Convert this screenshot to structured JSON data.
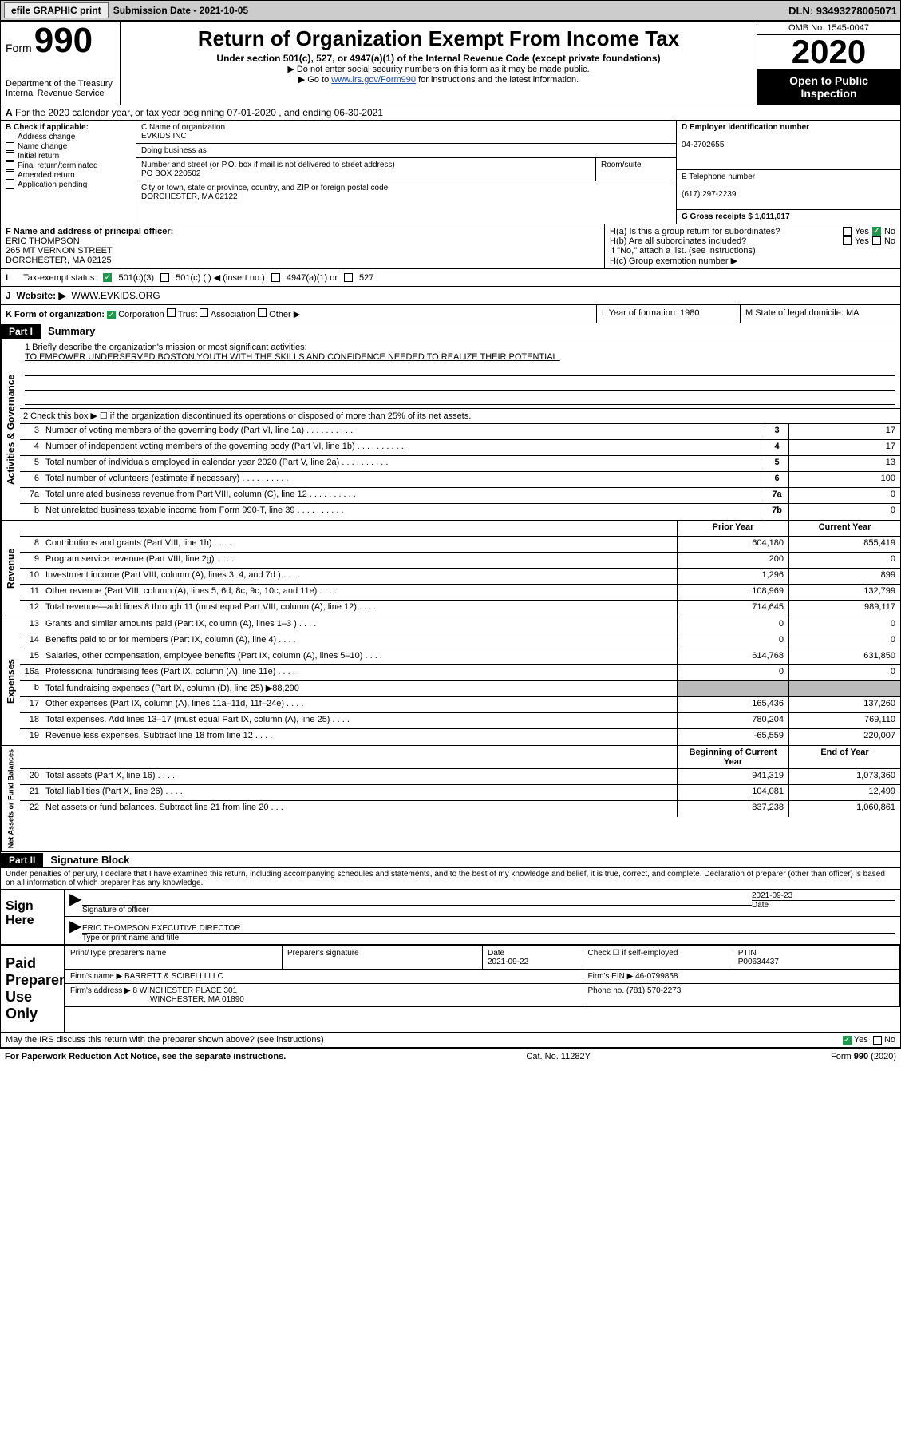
{
  "topbar": {
    "efile_label": "efile GRAPHIC print",
    "sub_date_label": "Submission Date - 2021-10-05",
    "dln_label": "DLN: 93493278005071"
  },
  "header": {
    "form_prefix": "Form",
    "form_number": "990",
    "dept": "Department of the Treasury\nInternal Revenue Service",
    "title": "Return of Organization Exempt From Income Tax",
    "subtitle": "Under section 501(c), 527, or 4947(a)(1) of the Internal Revenue Code (except private foundations)",
    "note1": "▶ Do not enter social security numbers on this form as it may be made public.",
    "note2_prefix": "▶ Go to ",
    "note2_link": "www.irs.gov/Form990",
    "note2_suffix": " for instructions and the latest information.",
    "omb": "OMB No. 1545-0047",
    "year": "2020",
    "open_public": "Open to Public Inspection"
  },
  "lineA": "For the 2020 calendar year, or tax year beginning 07-01-2020    , and ending 06-30-2021",
  "sectionB": {
    "header": "B Check if applicable:",
    "items": [
      "Address change",
      "Name change",
      "Initial return",
      "Final return/terminated",
      "Amended return",
      "Application pending"
    ]
  },
  "sectionC": {
    "name_label": "C Name of organization",
    "name": "EVKIDS INC",
    "dba_label": "Doing business as",
    "dba": "",
    "addr_label": "Number and street (or P.O. box if mail is not delivered to street address)",
    "room_label": "Room/suite",
    "addr": "PO BOX 220502",
    "city_label": "City or town, state or province, country, and ZIP or foreign postal code",
    "city": "DORCHESTER, MA  02122"
  },
  "sectionD": {
    "label": "D Employer identification number",
    "value": "04-2702655"
  },
  "sectionE": {
    "label": "E Telephone number",
    "value": "(617) 297-2239"
  },
  "sectionG": {
    "label": "G Gross receipts $ 1,011,017"
  },
  "sectionF": {
    "label": "F  Name and address of principal officer:",
    "name": "ERIC THOMPSON",
    "addr1": "265 MT VERNON STREET",
    "addr2": "DORCHESTER, MA  02125"
  },
  "sectionH": {
    "ha": "H(a)  Is this a group return for subordinates?",
    "hb": "H(b)  Are all subordinates included?",
    "hb_note": "If \"No,\" attach a list. (see instructions)",
    "hc": "H(c)  Group exemption number ▶",
    "yes": "Yes",
    "no": "No"
  },
  "sectionI": {
    "label": "Tax-exempt status:",
    "opts": [
      "501(c)(3)",
      "501(c) (  ) ◀ (insert no.)",
      "4947(a)(1) or",
      "527"
    ]
  },
  "sectionJ": {
    "label": "J",
    "text": "Website: ▶",
    "value": "WWW.EVKIDS.ORG"
  },
  "sectionK": {
    "label": "K Form of organization:",
    "opts": [
      "Corporation",
      "Trust",
      "Association",
      "Other ▶"
    ]
  },
  "sectionL": {
    "label": "L Year of formation: 1980"
  },
  "sectionM": {
    "label": "M State of legal domicile: MA"
  },
  "partI": {
    "header": "Part I",
    "title": "Summary",
    "line1_label": "1  Briefly describe the organization's mission or most significant activities:",
    "line1_value": "TO EMPOWER UNDERSERVED BOSTON YOUTH WITH THE SKILLS AND CONFIDENCE NEEDED TO REALIZE THEIR POTENTIAL.",
    "line2": "2    Check this box ▶ ☐  if the organization discontinued its operations or disposed of more than 25% of its net assets."
  },
  "governance": {
    "vtab": "Activities & Governance",
    "rows": [
      {
        "n": "3",
        "desc": "Number of voting members of the governing body (Part VI, line 1a)",
        "box": "3",
        "val": "17"
      },
      {
        "n": "4",
        "desc": "Number of independent voting members of the governing body (Part VI, line 1b)",
        "box": "4",
        "val": "17"
      },
      {
        "n": "5",
        "desc": "Total number of individuals employed in calendar year 2020 (Part V, line 2a)",
        "box": "5",
        "val": "13"
      },
      {
        "n": "6",
        "desc": "Total number of volunteers (estimate if necessary)",
        "box": "6",
        "val": "100"
      },
      {
        "n": "7a",
        "desc": "Total unrelated business revenue from Part VIII, column (C), line 12",
        "box": "7a",
        "val": "0"
      },
      {
        "n": "b",
        "desc": "Net unrelated business taxable income from Form 990-T, line 39",
        "box": "7b",
        "val": "0"
      }
    ]
  },
  "revenue": {
    "vtab": "Revenue",
    "hdr_prior": "Prior Year",
    "hdr_current": "Current Year",
    "rows": [
      {
        "n": "8",
        "desc": "Contributions and grants (Part VIII, line 1h)",
        "p": "604,180",
        "c": "855,419"
      },
      {
        "n": "9",
        "desc": "Program service revenue (Part VIII, line 2g)",
        "p": "200",
        "c": "0"
      },
      {
        "n": "10",
        "desc": "Investment income (Part VIII, column (A), lines 3, 4, and 7d )",
        "p": "1,296",
        "c": "899"
      },
      {
        "n": "11",
        "desc": "Other revenue (Part VIII, column (A), lines 5, 6d, 8c, 9c, 10c, and 11e)",
        "p": "108,969",
        "c": "132,799"
      },
      {
        "n": "12",
        "desc": "Total revenue—add lines 8 through 11 (must equal Part VIII, column (A), line 12)",
        "p": "714,645",
        "c": "989,117"
      }
    ]
  },
  "expenses": {
    "vtab": "Expenses",
    "rows": [
      {
        "n": "13",
        "desc": "Grants and similar amounts paid (Part IX, column (A), lines 1–3 )",
        "p": "0",
        "c": "0"
      },
      {
        "n": "14",
        "desc": "Benefits paid to or for members (Part IX, column (A), line 4)",
        "p": "0",
        "c": "0"
      },
      {
        "n": "15",
        "desc": "Salaries, other compensation, employee benefits (Part IX, column (A), lines 5–10)",
        "p": "614,768",
        "c": "631,850"
      },
      {
        "n": "16a",
        "desc": "Professional fundraising fees (Part IX, column (A), line 11e)",
        "p": "0",
        "c": "0"
      },
      {
        "n": "b",
        "desc": "Total fundraising expenses (Part IX, column (D), line 25) ▶88,290",
        "p": "",
        "c": "",
        "grey": true
      },
      {
        "n": "17",
        "desc": "Other expenses (Part IX, column (A), lines 11a–11d, 11f–24e)",
        "p": "165,436",
        "c": "137,260"
      },
      {
        "n": "18",
        "desc": "Total expenses. Add lines 13–17 (must equal Part IX, column (A), line 25)",
        "p": "780,204",
        "c": "769,110"
      },
      {
        "n": "19",
        "desc": "Revenue less expenses. Subtract line 18 from line 12",
        "p": "-65,559",
        "c": "220,007"
      }
    ]
  },
  "netassets": {
    "vtab": "Net Assets or Fund Balances",
    "hdr_begin": "Beginning of Current Year",
    "hdr_end": "End of Year",
    "rows": [
      {
        "n": "20",
        "desc": "Total assets (Part X, line 16)",
        "p": "941,319",
        "c": "1,073,360"
      },
      {
        "n": "21",
        "desc": "Total liabilities (Part X, line 26)",
        "p": "104,081",
        "c": "12,499"
      },
      {
        "n": "22",
        "desc": "Net assets or fund balances. Subtract line 21 from line 20",
        "p": "837,238",
        "c": "1,060,861"
      }
    ]
  },
  "partII": {
    "header": "Part II",
    "title": "Signature Block",
    "penalty": "Under penalties of perjury, I declare that I have examined this return, including accompanying schedules and statements, and to the best of my knowledge and belief, it is true, correct, and complete. Declaration of preparer (other than officer) is based on all information of which preparer has any knowledge."
  },
  "sign": {
    "label": "Sign Here",
    "sig_label": "Signature of officer",
    "date_label": "Date",
    "date": "2021-09-23",
    "name": "ERIC THOMPSON  EXECUTIVE DIRECTOR",
    "name_label": "Type or print name and title"
  },
  "paid": {
    "label": "Paid Preparer Use Only",
    "pname_label": "Print/Type preparer's name",
    "psig_label": "Preparer's signature",
    "pdate_label": "Date",
    "pdate": "2021-09-22",
    "pcheck_label": "Check ☐ if self-employed",
    "ptin_label": "PTIN",
    "ptin": "P00634437",
    "firm_label": "Firm's name   ▶",
    "firm": "BARRETT & SCIBELLI LLC",
    "firm_ein_label": "Firm's EIN ▶",
    "firm_ein": "46-0799858",
    "firm_addr_label": "Firm's address ▶",
    "firm_addr1": "8 WINCHESTER PLACE 301",
    "firm_addr2": "WINCHESTER, MA  01890",
    "phone_label": "Phone no.",
    "phone": "(781) 570-2273"
  },
  "discuss": {
    "text": "May the IRS discuss this return with the preparer shown above? (see instructions)",
    "yes": "Yes",
    "no": "No"
  },
  "footer": {
    "paperwork": "For Paperwork Reduction Act Notice, see the separate instructions.",
    "catno": "Cat. No. 11282Y",
    "formref": "Form 990 (2020)"
  },
  "colors": {
    "link": "#1a4da0",
    "check_green": "#1a9a4a"
  }
}
